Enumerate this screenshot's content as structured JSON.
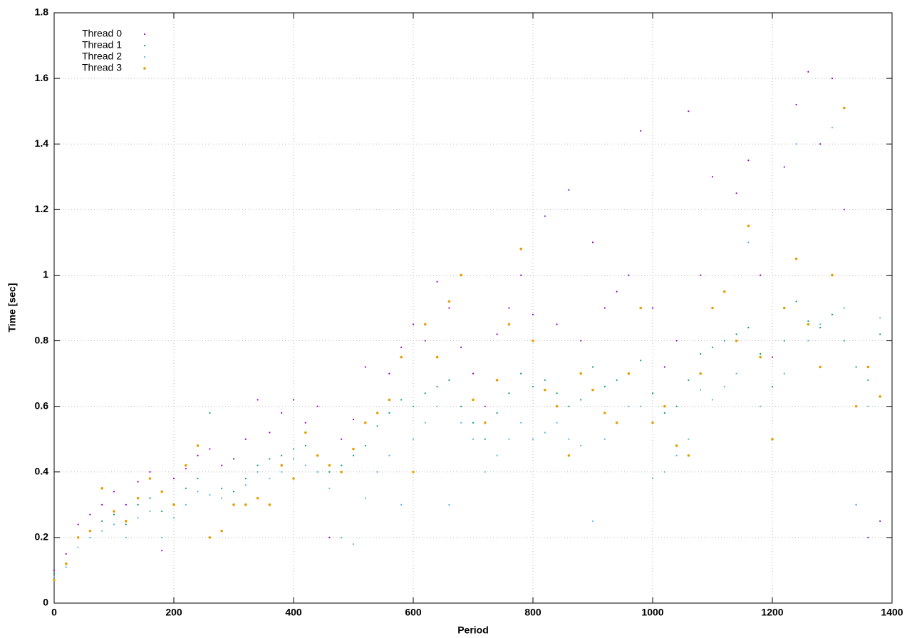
{
  "chart_data": {
    "type": "scatter",
    "x_label": "Period",
    "y_label": "Time [sec]",
    "x": [
      0,
      20,
      40,
      60,
      80,
      100,
      120,
      140,
      160,
      180,
      200,
      220,
      240,
      260,
      280,
      300,
      320,
      340,
      360,
      380,
      400,
      420,
      440,
      460,
      480,
      500,
      520,
      540,
      560,
      580,
      600,
      620,
      640,
      660,
      680,
      700,
      720,
      740,
      760,
      780,
      800,
      820,
      840,
      860,
      880,
      900,
      920,
      940,
      960,
      980,
      1000,
      1020,
      1040,
      1060,
      1080,
      1100,
      1120,
      1140,
      1160,
      1180,
      1200,
      1220,
      1240,
      1260,
      1280,
      1300,
      1320,
      1340,
      1360,
      1380
    ],
    "series": [
      {
        "name": "Thread 0",
        "color": "#9400d3",
        "marker_size": 1.1,
        "values": [
          0.1,
          0.15,
          0.24,
          0.27,
          0.3,
          0.34,
          0.3,
          0.37,
          0.4,
          0.16,
          0.38,
          0.41,
          0.45,
          0.47,
          0.42,
          0.44,
          0.5,
          0.62,
          0.52,
          0.58,
          0.62,
          0.55,
          0.6,
          0.2,
          0.5,
          0.56,
          0.72,
          0.58,
          0.7,
          0.78,
          0.85,
          0.8,
          0.98,
          0.9,
          0.78,
          0.7,
          0.6,
          0.82,
          0.9,
          1.0,
          0.88,
          1.18,
          0.85,
          1.26,
          0.8,
          1.1,
          0.9,
          0.95,
          1.0,
          1.44,
          0.9,
          0.72,
          0.8,
          1.5,
          1.0,
          1.3,
          0.95,
          1.25,
          1.35,
          1.0,
          0.75,
          1.33,
          1.52,
          1.62,
          1.4,
          1.6,
          1.2,
          0.3,
          0.2,
          0.25
        ]
      },
      {
        "name": "Thread 1",
        "color": "#009e73",
        "marker_size": 1.1,
        "values": [
          0.09,
          0.12,
          0.2,
          0.22,
          0.25,
          0.27,
          0.24,
          0.3,
          0.32,
          0.28,
          0.3,
          0.35,
          0.38,
          0.58,
          0.35,
          0.34,
          0.38,
          0.42,
          0.44,
          0.45,
          0.47,
          0.48,
          0.45,
          0.4,
          0.42,
          0.45,
          0.48,
          0.54,
          0.58,
          0.62,
          0.6,
          0.64,
          0.66,
          0.68,
          0.6,
          0.55,
          0.5,
          0.58,
          0.64,
          0.7,
          0.66,
          0.68,
          0.64,
          0.6,
          0.62,
          0.72,
          0.66,
          0.68,
          0.7,
          0.74,
          0.64,
          0.58,
          0.6,
          0.68,
          0.76,
          0.78,
          0.8,
          0.82,
          0.84,
          0.76,
          0.66,
          0.8,
          0.92,
          0.86,
          0.84,
          0.88,
          0.8,
          0.72,
          0.68,
          0.82
        ]
      },
      {
        "name": "Thread 2",
        "color": "#56b4e9",
        "marker_size": 1.1,
        "values": [
          0.08,
          0.11,
          0.17,
          0.2,
          0.22,
          0.24,
          0.2,
          0.26,
          0.28,
          0.2,
          0.26,
          0.3,
          0.34,
          0.33,
          0.32,
          0.3,
          0.36,
          0.4,
          0.38,
          0.4,
          0.44,
          0.42,
          0.4,
          0.35,
          0.2,
          0.18,
          0.32,
          0.4,
          0.45,
          0.3,
          0.5,
          0.55,
          0.6,
          0.3,
          0.55,
          0.5,
          0.4,
          0.45,
          0.5,
          0.55,
          0.5,
          0.52,
          0.55,
          0.5,
          0.48,
          0.25,
          0.5,
          0.55,
          0.6,
          0.6,
          0.38,
          0.4,
          0.45,
          0.5,
          0.65,
          0.62,
          0.66,
          0.7,
          1.1,
          0.6,
          0.5,
          0.7,
          1.4,
          0.8,
          0.85,
          1.45,
          0.9,
          0.3,
          0.6,
          0.87
        ]
      },
      {
        "name": "Thread 3",
        "color": "#e69f00",
        "marker_size": 1.8,
        "values": [
          0.07,
          0.12,
          0.2,
          0.22,
          0.35,
          0.28,
          0.25,
          0.32,
          0.38,
          0.34,
          0.3,
          0.42,
          0.48,
          0.2,
          0.22,
          0.3,
          0.3,
          0.32,
          0.3,
          0.42,
          0.38,
          0.52,
          0.45,
          0.42,
          0.4,
          0.47,
          0.55,
          0.58,
          0.62,
          0.75,
          0.4,
          0.85,
          0.75,
          0.92,
          1.0,
          0.62,
          0.55,
          0.68,
          0.85,
          1.08,
          0.8,
          0.65,
          0.6,
          0.45,
          0.7,
          0.65,
          0.58,
          0.55,
          0.7,
          0.9,
          0.55,
          0.6,
          0.48,
          0.45,
          0.7,
          0.9,
          0.95,
          0.8,
          1.15,
          0.75,
          0.5,
          0.9,
          1.05,
          0.85,
          0.72,
          1.0,
          1.51,
          0.6,
          0.72,
          0.63
        ]
      }
    ],
    "xlim": [
      0,
      1400
    ],
    "xticks": [
      0,
      200,
      400,
      600,
      800,
      1000,
      1200,
      1400
    ],
    "ylim": [
      0,
      1.8
    ],
    "yticks": [
      0,
      0.2,
      0.4,
      0.6,
      0.8,
      1,
      1.2,
      1.4,
      1.6,
      1.8
    ],
    "grid": true,
    "legend": "top-left"
  }
}
